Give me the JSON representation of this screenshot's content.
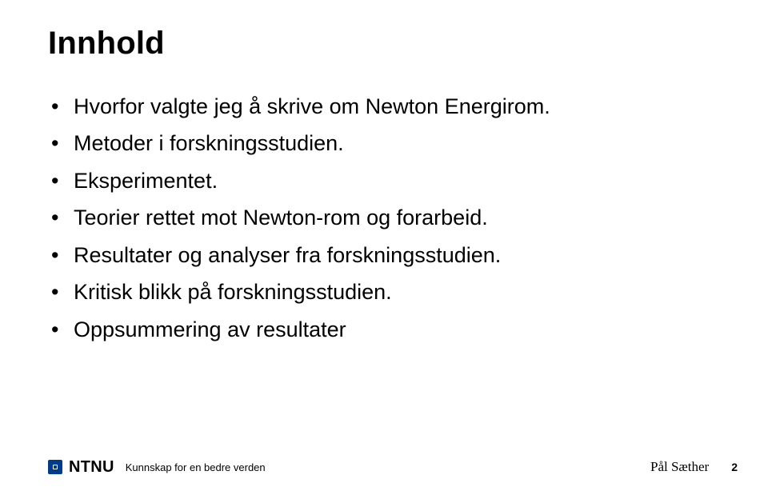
{
  "slide": {
    "title": "Innhold",
    "bullets": [
      "Hvorfor valgte jeg å skrive om Newton Energirom.",
      "Metoder i forskningsstudien.",
      "Eksperimentet.",
      "Teorier rettet mot Newton-rom og forarbeid.",
      "Resultater og analyser fra forskningsstudien.",
      "Kritisk blikk på forskningsstudien.",
      "Oppsummering av resultater"
    ]
  },
  "footer": {
    "logo_text": "NTNU",
    "tagline": "Kunnskap for en bedre verden",
    "author": "Pål Sæther",
    "page_number": "2"
  },
  "colors": {
    "background": "#ffffff",
    "text": "#000000",
    "logo_blue": "#013b8c"
  }
}
